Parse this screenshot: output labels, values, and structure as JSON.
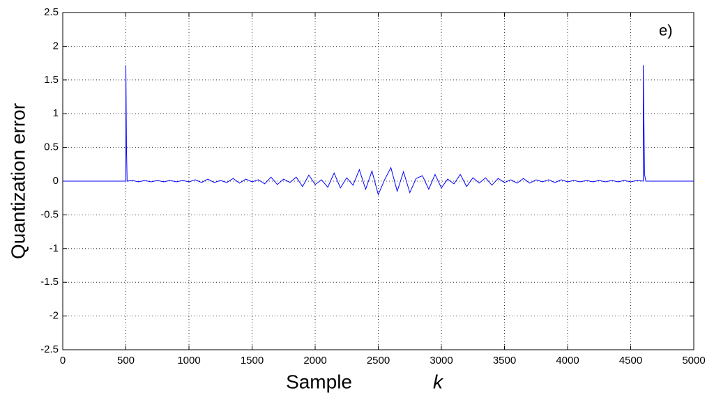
{
  "chart_data": {
    "type": "line",
    "annotation": "e)",
    "xlabel": "Sample",
    "xlabel_symbol": "k",
    "ylabel": "Quantization error",
    "color": "#0000ff",
    "grid": true,
    "xlim": [
      0,
      5000
    ],
    "ylim": [
      -2.5,
      2.5
    ],
    "xticks": [
      0,
      500,
      1000,
      1500,
      2000,
      2500,
      3000,
      3500,
      4000,
      4500,
      5000
    ],
    "yticks": [
      -2.5,
      -2,
      -1.5,
      -1,
      -0.5,
      0,
      0.5,
      1,
      1.5,
      2,
      2.5
    ],
    "x": [
      0,
      500,
      500,
      505,
      510,
      550,
      600,
      650,
      700,
      750,
      800,
      850,
      900,
      950,
      1000,
      1050,
      1100,
      1150,
      1200,
      1250,
      1300,
      1350,
      1400,
      1450,
      1500,
      1550,
      1600,
      1650,
      1700,
      1750,
      1800,
      1850,
      1900,
      1950,
      2000,
      2050,
      2100,
      2150,
      2200,
      2250,
      2300,
      2350,
      2400,
      2450,
      2500,
      2550,
      2600,
      2650,
      2700,
      2750,
      2800,
      2850,
      2900,
      2950,
      3000,
      3050,
      3100,
      3150,
      3200,
      3250,
      3300,
      3350,
      3400,
      3450,
      3500,
      3550,
      3600,
      3650,
      3700,
      3750,
      3800,
      3850,
      3900,
      3950,
      4000,
      4050,
      4100,
      4150,
      4200,
      4250,
      4300,
      4350,
      4400,
      4450,
      4500,
      4550,
      4600,
      4600,
      4610,
      4620,
      5000
    ],
    "values": [
      0,
      0,
      1.72,
      0.5,
      0,
      0.01,
      -0.01,
      0.01,
      -0.01,
      0.01,
      -0.01,
      0.01,
      -0.01,
      0.01,
      -0.01,
      0.02,
      -0.02,
      0.03,
      -0.02,
      0.01,
      -0.02,
      0.04,
      -0.03,
      0.03,
      -0.01,
      0.02,
      -0.04,
      0.06,
      -0.05,
      0.03,
      -0.02,
      0.06,
      -0.08,
      0.09,
      -0.05,
      0.02,
      -0.09,
      0.12,
      -0.1,
      0.05,
      -0.06,
      0.17,
      -0.12,
      0.15,
      -0.2,
      0.02,
      0.2,
      -0.15,
      0.14,
      -0.17,
      0.04,
      0.08,
      -0.12,
      0.1,
      -0.1,
      0.03,
      -0.04,
      0.1,
      -0.08,
      0.05,
      -0.03,
      0.05,
      -0.06,
      0.04,
      -0.02,
      0.02,
      -0.03,
      0.04,
      -0.03,
      0.02,
      -0.01,
      0.02,
      -0.02,
      0.02,
      -0.01,
      0.01,
      -0.01,
      0.01,
      -0.01,
      0.01,
      -0.01,
      0.01,
      -0.01,
      0.01,
      -0.01,
      0.01,
      0,
      1.72,
      0.1,
      0,
      0
    ]
  }
}
